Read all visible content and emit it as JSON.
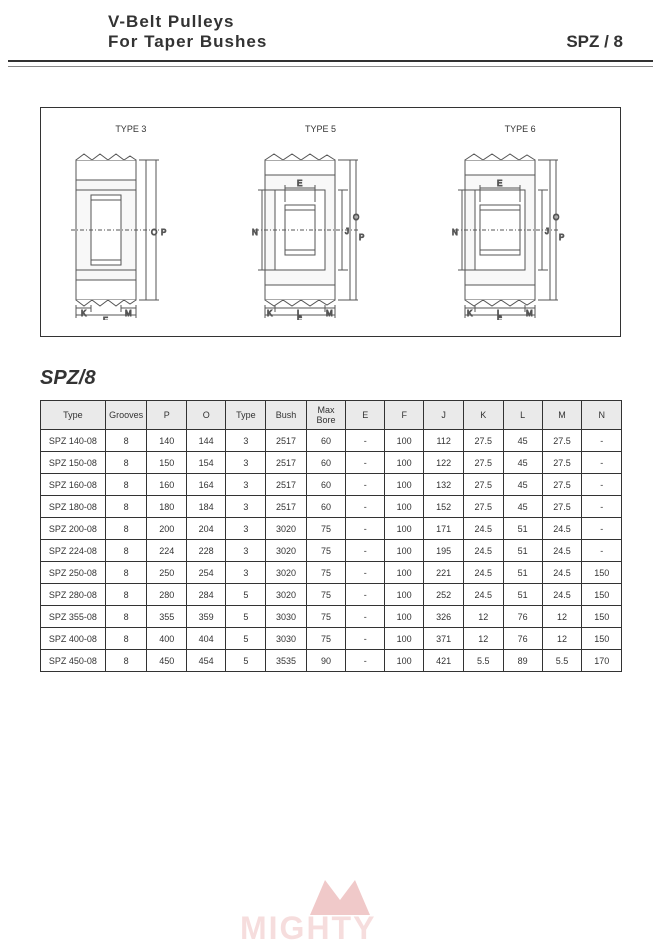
{
  "header": {
    "title_line1": "V-Belt  Pulleys",
    "title_line2": "For Taper Bushes",
    "code": "SPZ / 8"
  },
  "diagrams": {
    "type3_label": "TYPE 3",
    "type5_label": "TYPE 5",
    "type6_label": "TYPE 6",
    "dim_labels": {
      "K": "K",
      "M": "M",
      "F": "F",
      "L": "L",
      "N": "N",
      "E": "E",
      "O": "O",
      "P": "P"
    }
  },
  "section_title": "SPZ/8",
  "table": {
    "columns": [
      "Type",
      "Grooves",
      "P",
      "O",
      "Type",
      "Bush",
      "Max Bore",
      "E",
      "F",
      "J",
      "K",
      "L",
      "M",
      "N"
    ],
    "rows": [
      [
        "SPZ  140-08",
        "8",
        "140",
        "144",
        "3",
        "2517",
        "60",
        "-",
        "100",
        "112",
        "27.5",
        "45",
        "27.5",
        "-"
      ],
      [
        "SPZ  150-08",
        "8",
        "150",
        "154",
        "3",
        "2517",
        "60",
        "-",
        "100",
        "122",
        "27.5",
        "45",
        "27.5",
        "-"
      ],
      [
        "SPZ  160-08",
        "8",
        "160",
        "164",
        "3",
        "2517",
        "60",
        "-",
        "100",
        "132",
        "27.5",
        "45",
        "27.5",
        "-"
      ],
      [
        "SPZ  180-08",
        "8",
        "180",
        "184",
        "3",
        "2517",
        "60",
        "-",
        "100",
        "152",
        "27.5",
        "45",
        "27.5",
        "-"
      ],
      [
        "SPZ  200-08",
        "8",
        "200",
        "204",
        "3",
        "3020",
        "75",
        "-",
        "100",
        "171",
        "24.5",
        "51",
        "24.5",
        "-"
      ],
      [
        "SPZ  224-08",
        "8",
        "224",
        "228",
        "3",
        "3020",
        "75",
        "-",
        "100",
        "195",
        "24.5",
        "51",
        "24.5",
        "-"
      ],
      [
        "SPZ  250-08",
        "8",
        "250",
        "254",
        "3",
        "3020",
        "75",
        "-",
        "100",
        "221",
        "24.5",
        "51",
        "24.5",
        "150"
      ],
      [
        "SPZ  280-08",
        "8",
        "280",
        "284",
        "5",
        "3020",
        "75",
        "-",
        "100",
        "252",
        "24.5",
        "51",
        "24.5",
        "150"
      ],
      [
        "SPZ  355-08",
        "8",
        "355",
        "359",
        "5",
        "3030",
        "75",
        "-",
        "100",
        "326",
        "12",
        "76",
        "12",
        "150"
      ],
      [
        "SPZ  400-08",
        "8",
        "400",
        "404",
        "5",
        "3030",
        "75",
        "-",
        "100",
        "371",
        "12",
        "76",
        "12",
        "150"
      ],
      [
        "SPZ  450-08",
        "8",
        "450",
        "454",
        "5",
        "3535",
        "90",
        "-",
        "100",
        "421",
        "5.5",
        "89",
        "5.5",
        "170"
      ]
    ]
  },
  "watermark": {
    "text": "MIGHTY",
    "icon_color": "#d05050"
  },
  "colors": {
    "border": "#333333",
    "header_bg": "#eaeaea",
    "watermark": "#e8a0a0",
    "diagram_line": "#555555"
  }
}
